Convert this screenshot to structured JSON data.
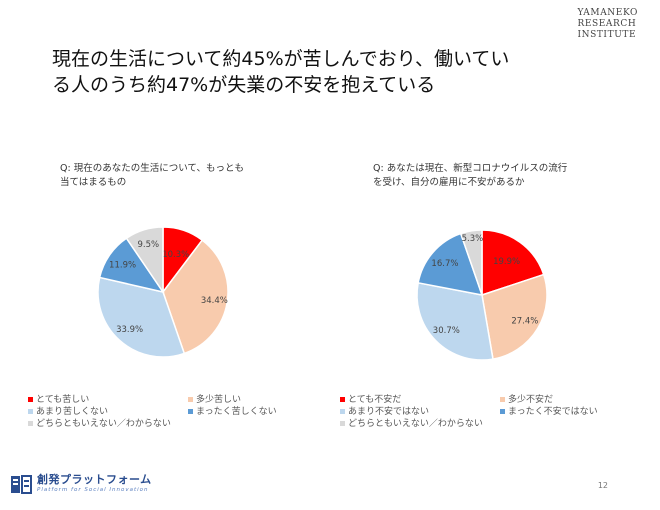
{
  "brand": {
    "top_right_lines": [
      "YAMANEKO",
      "RESEARCH",
      "INSTITUTE"
    ],
    "bottom_left_name": "創発プラットフォーム",
    "bottom_left_tag": "Platform for Social Innovation"
  },
  "title": {
    "line1": "現在の生活について約45%が苦しんでおり、働いてい",
    "line2": "る人のうち約47%が失業の不安を抱えている"
  },
  "page_number": "12",
  "chart_data": [
    {
      "type": "pie",
      "title": "Q: 現在のあなたの生活について、もっとも当てはまるもの",
      "title_lines": [
        "Q: 現在のあなたの生活について、もっとも",
        "当てはまるもの"
      ],
      "categories": [
        "とても苦しい",
        "多少苦しい",
        "あまり苦しくない",
        "まったく苦しくない",
        "どちらともいえない／わからない"
      ],
      "values": [
        10.3,
        34.4,
        33.9,
        11.9,
        9.5
      ],
      "labels": [
        "10.3%",
        "34.4%",
        "33.9%",
        "11.9%",
        "9.5%"
      ],
      "colors": [
        "#ff0000",
        "#f8cbad",
        "#bdd7ee",
        "#5b9bd5",
        "#d9d9d9"
      ],
      "start": "top",
      "direction": "clockwise",
      "legend_position": "bottom"
    },
    {
      "type": "pie",
      "title": "Q: あなたは現在、新型コロナウイルスの流行を受け、自分の雇用に不安があるか",
      "title_lines": [
        "Q: あなたは現在、新型コロナウイルスの流行",
        "を受け、自分の雇用に不安があるか"
      ],
      "categories": [
        "とても不安だ",
        "多少不安だ",
        "あまり不安ではない",
        "まったく不安ではない",
        "どちらともいえない／わからない"
      ],
      "values": [
        19.9,
        27.4,
        30.7,
        16.7,
        5.3
      ],
      "labels": [
        "19.9%",
        "27.4%",
        "30.7%",
        "16.7%",
        "5.3%"
      ],
      "colors": [
        "#ff0000",
        "#f8cbad",
        "#bdd7ee",
        "#5b9bd5",
        "#d9d9d9"
      ],
      "start": "top",
      "direction": "clockwise",
      "legend_position": "bottom"
    }
  ]
}
